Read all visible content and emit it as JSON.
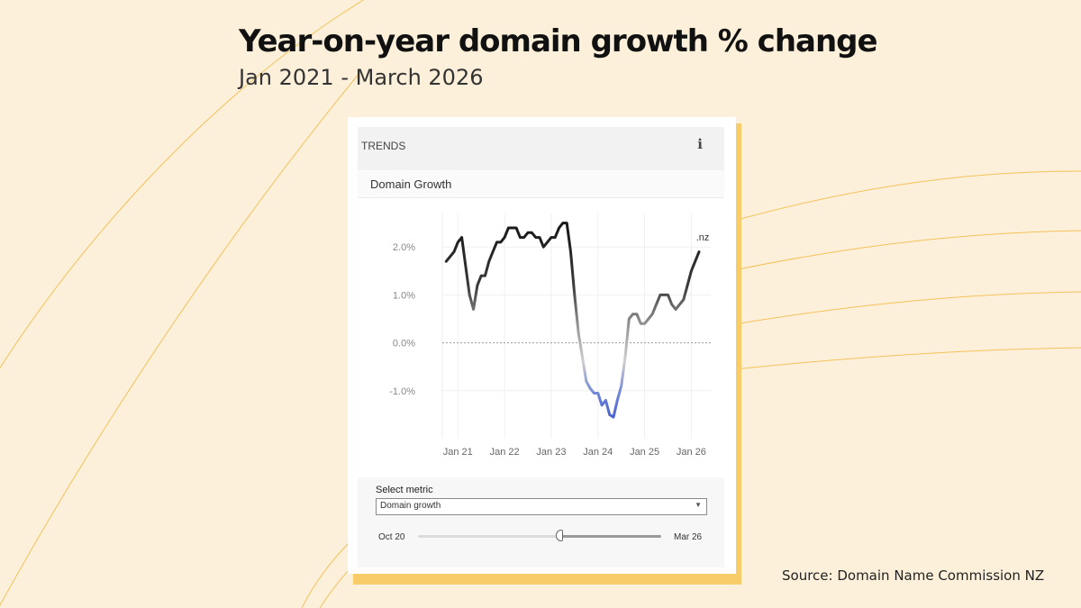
{
  "title": "Year-on-year domain growth % change",
  "subtitle": "Jan 2021 - March 2026",
  "source": "Source: Domain Name Commission NZ",
  "card": {
    "header_label": "TRENDS",
    "info_icon": "info-icon",
    "chart_title": "Domain Growth"
  },
  "controls": {
    "select_label": "Select metric",
    "select_value": "Domain growth",
    "range_start": "Oct 20",
    "range_end": "Mar 26",
    "slider_selected_fraction": [
      0.58,
      1.0
    ]
  },
  "colors": {
    "background": "#fdf0da",
    "card_shadow": "#f9cc6a",
    "line_high": "#1a1a1a",
    "line_mid": "#d9d9d9",
    "line_low": "#3b5bd0"
  },
  "chart_data": {
    "type": "line",
    "title": "Domain Growth",
    "xlabel": "",
    "ylabel": "",
    "ylim": [
      -2.0,
      2.7
    ],
    "xlim": [
      "2020-09",
      "2026-06"
    ],
    "ytick_values": [
      -1.0,
      0.0,
      1.0,
      2.0
    ],
    "ytick_labels": [
      "-1.0%",
      "0.0%",
      "1.0%",
      "2.0%"
    ],
    "xtick_values": [
      "2021-01",
      "2022-01",
      "2023-01",
      "2024-01",
      "2025-01",
      "2026-01"
    ],
    "xtick_labels": [
      "Jan 21",
      "Jan 22",
      "Jan 23",
      "Jan 24",
      "Jan 25",
      "Jan 26"
    ],
    "grid": true,
    "legend": "none",
    "series": [
      {
        "name": ".nz",
        "x": [
          "2020-10",
          "2020-11",
          "2020-12",
          "2021-01",
          "2021-02",
          "2021-03",
          "2021-04",
          "2021-05",
          "2021-06",
          "2021-07",
          "2021-08",
          "2021-09",
          "2021-10",
          "2021-11",
          "2021-12",
          "2022-01",
          "2022-02",
          "2022-03",
          "2022-04",
          "2022-05",
          "2022-06",
          "2022-07",
          "2022-08",
          "2022-09",
          "2022-10",
          "2022-11",
          "2022-12",
          "2023-01",
          "2023-02",
          "2023-03",
          "2023-04",
          "2023-05",
          "2023-06",
          "2023-07",
          "2023-08",
          "2023-09",
          "2023-10",
          "2023-11",
          "2023-12",
          "2024-01",
          "2024-02",
          "2024-03",
          "2024-04",
          "2024-05",
          "2024-06",
          "2024-07",
          "2024-08",
          "2024-09",
          "2024-10",
          "2024-11",
          "2024-12",
          "2025-01",
          "2025-02",
          "2025-03",
          "2025-04",
          "2025-05",
          "2025-06",
          "2025-07",
          "2025-08",
          "2025-09",
          "2025-10",
          "2025-11",
          "2025-12",
          "2026-01",
          "2026-02",
          "2026-03"
        ],
        "y": [
          1.7,
          1.8,
          1.9,
          2.1,
          2.2,
          1.6,
          1.0,
          0.7,
          1.2,
          1.4,
          1.4,
          1.7,
          1.9,
          2.1,
          2.1,
          2.2,
          2.4,
          2.4,
          2.4,
          2.2,
          2.2,
          2.3,
          2.3,
          2.2,
          2.2,
          2.0,
          2.1,
          2.2,
          2.2,
          2.4,
          2.5,
          2.5,
          1.9,
          1.0,
          0.2,
          -0.3,
          -0.8,
          -0.95,
          -1.05,
          -1.05,
          -1.3,
          -1.2,
          -1.5,
          -1.55,
          -1.2,
          -0.9,
          -0.3,
          0.5,
          0.6,
          0.6,
          0.4,
          0.4,
          0.5,
          0.6,
          0.8,
          1.0,
          1.0,
          1.0,
          0.8,
          0.7,
          0.8,
          0.9,
          1.2,
          1.5,
          1.7,
          1.9
        ]
      }
    ],
    "annotations": [
      {
        "text": ".nz",
        "x": "2026-03",
        "y": 2.1
      }
    ]
  }
}
